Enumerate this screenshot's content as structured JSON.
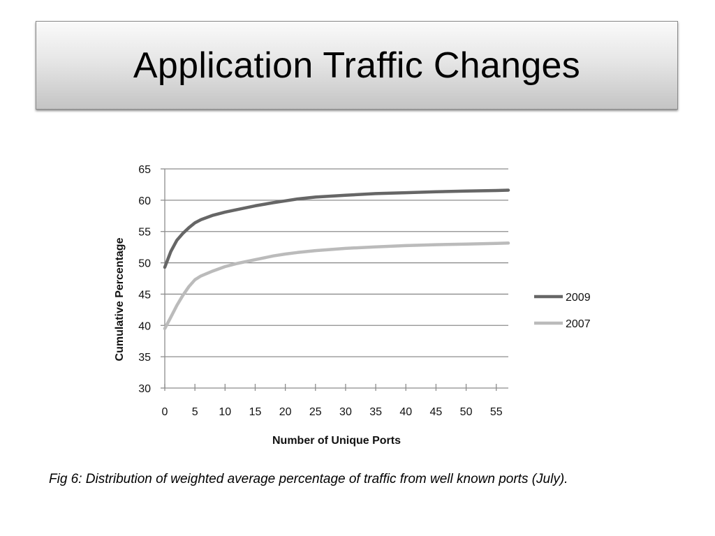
{
  "slide": {
    "title": "Application Traffic Changes",
    "caption": "Fig 6:  Distribution of weighted average percentage of traffic from well known ports (July)."
  },
  "chart_data": {
    "type": "line",
    "xlabel": "Number of Unique Ports",
    "ylabel": "Cumulative  Percentage",
    "xlim": [
      0,
      57
    ],
    "ylim": [
      30,
      65
    ],
    "x_ticks": [
      "0",
      "5",
      "10",
      "15",
      "20",
      "25",
      "30",
      "35",
      "40",
      "45",
      "50",
      "55"
    ],
    "y_ticks": [
      "65",
      "60",
      "55",
      "50",
      "45",
      "40",
      "35",
      "30"
    ],
    "grid": "horizontal",
    "legend_position": "right",
    "series": [
      {
        "name": "2009",
        "color": "#666666",
        "x": [
          0,
          1,
          2,
          3,
          4,
          5,
          6,
          8,
          10,
          12,
          15,
          18,
          20,
          22,
          25,
          30,
          35,
          40,
          45,
          50,
          55,
          57
        ],
        "y": [
          49.3,
          51.8,
          53.6,
          54.7,
          55.6,
          56.4,
          56.9,
          57.6,
          58.1,
          58.5,
          59.1,
          59.6,
          59.9,
          60.2,
          60.5,
          60.8,
          61.05,
          61.2,
          61.35,
          61.45,
          61.55,
          61.6
        ]
      },
      {
        "name": "2007",
        "color": "#bbbbbb",
        "x": [
          0,
          1,
          2,
          3,
          4,
          5,
          6,
          8,
          10,
          12,
          15,
          18,
          20,
          22,
          25,
          30,
          35,
          40,
          45,
          50,
          55,
          57
        ],
        "y": [
          39.5,
          41.3,
          43.2,
          44.8,
          46.2,
          47.3,
          47.9,
          48.7,
          49.4,
          49.9,
          50.5,
          51.1,
          51.4,
          51.65,
          51.95,
          52.3,
          52.55,
          52.75,
          52.9,
          53.0,
          53.1,
          53.15
        ]
      }
    ]
  }
}
